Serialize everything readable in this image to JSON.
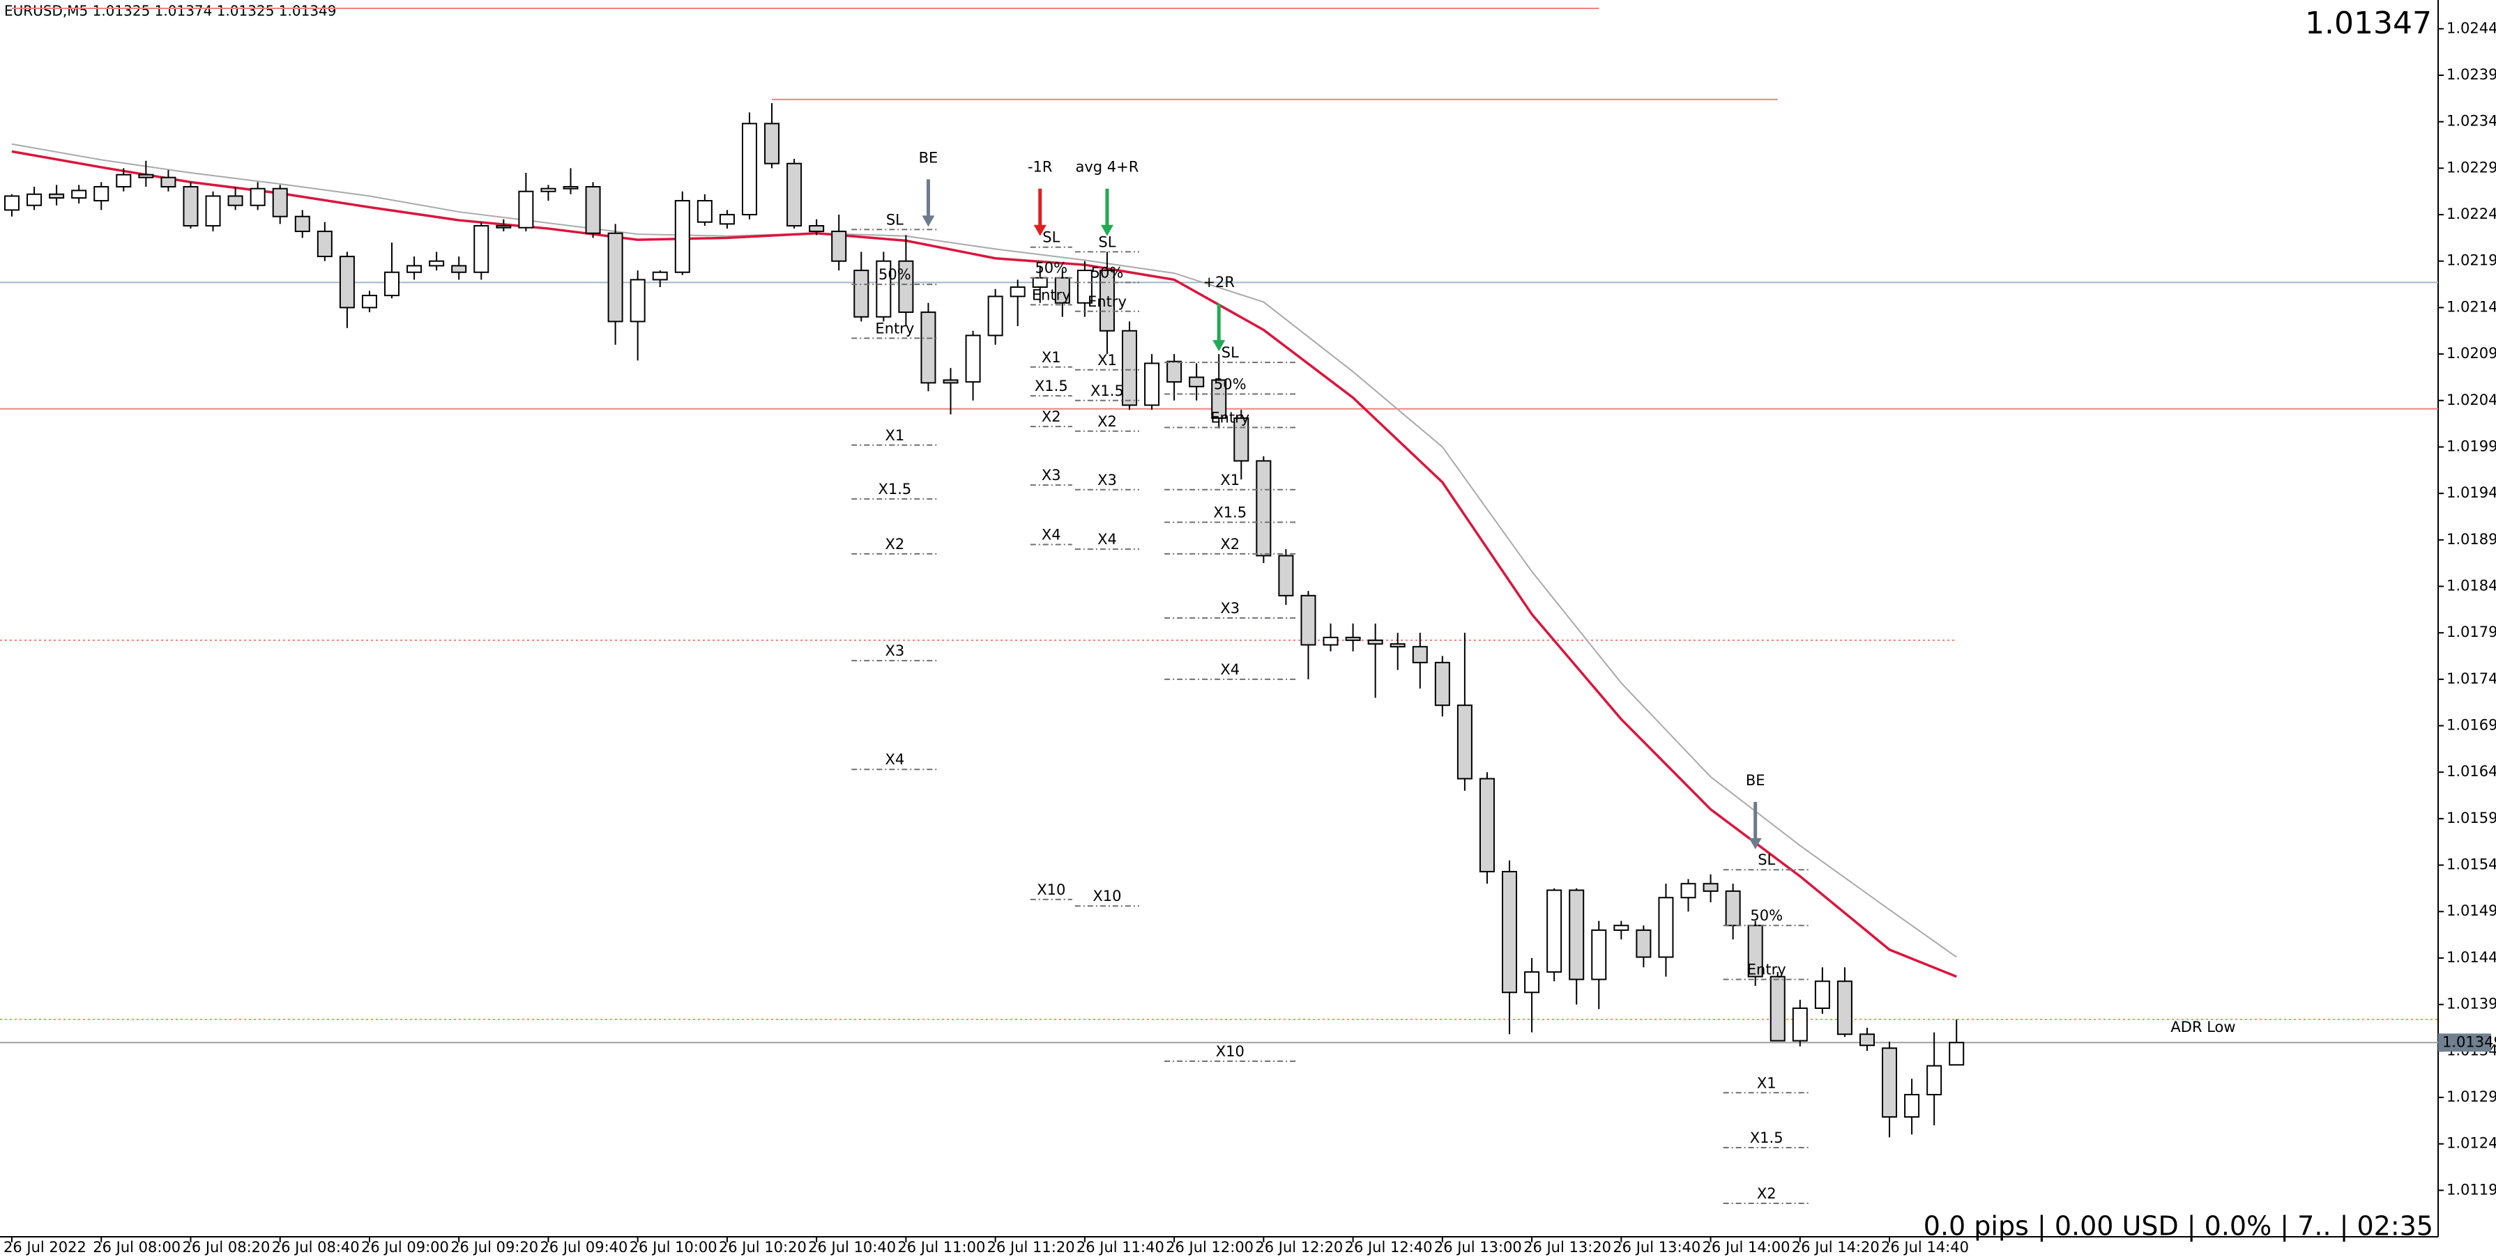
{
  "chart_data": {
    "type": "candlestick",
    "title": "EURUSD,M5  1.01325 1.01374 1.01325 1.01349",
    "last_price": 1.01347,
    "status": "0.0 pips | 0.00 USD | 0.0% | 7.. | 02:35",
    "up_color": "#ffffff",
    "down_color": "#d3d3d3",
    "categories": [
      "26 Jul 2022",
      null,
      null,
      null,
      "26 Jul 08:00",
      null,
      null,
      null,
      "26 Jul 08:20",
      null,
      null,
      null,
      "26 Jul 08:40",
      null,
      null,
      null,
      "26 Jul 09:00",
      null,
      null,
      null,
      "26 Jul 09:20",
      null,
      null,
      null,
      "26 Jul 09:40",
      null,
      null,
      null,
      "26 Jul 10:00",
      null,
      null,
      null,
      "26 Jul 10:20",
      null,
      null,
      null,
      "26 Jul 10:40",
      null,
      null,
      null,
      "26 Jul 11:00",
      null,
      null,
      null,
      "26 Jul 11:20",
      null,
      null,
      null,
      "26 Jul 11:40",
      null,
      null,
      null,
      "26 Jul 12:00",
      null,
      null,
      null,
      "26 Jul 12:20",
      null,
      null,
      null,
      "26 Jul 12:40",
      null,
      null,
      null,
      "26 Jul 13:00",
      null,
      null,
      null,
      "26 Jul 13:20",
      null,
      null,
      null,
      "26 Jul 13:40",
      null,
      null,
      null,
      "26 Jul 14:00",
      null,
      null,
      null,
      "26 Jul 14:20",
      null,
      null,
      null,
      "26 Jul 14:40",
      null,
      null,
      null
    ],
    "open": [
      1.02245,
      1.0225,
      1.02262,
      1.02258,
      1.02255,
      1.0227,
      1.02283,
      1.0228,
      1.0227,
      1.02228,
      1.0226,
      1.0225,
      1.02268,
      1.02238,
      1.02222,
      1.02195,
      1.0214,
      1.02153,
      1.02178,
      1.02185,
      1.02185,
      1.02178,
      1.02228,
      1.02226,
      1.02265,
      1.02268,
      1.0227,
      1.0222,
      1.02125,
      1.0217,
      1.02178,
      1.02232,
      1.0223,
      1.0224,
      1.02338,
      1.02295,
      1.02228,
      1.02222,
      1.0218,
      1.0213,
      1.0219,
      1.02135,
      1.02062,
      1.0206,
      1.0211,
      1.02152,
      1.02162,
      1.02172,
      1.02145,
      1.0218,
      1.02115,
      1.02035,
      1.02082,
      1.02065,
      1.02062,
      1.02021,
      1.01975,
      1.01873,
      1.0183,
      1.01777,
      1.01785,
      1.01782,
      1.01778,
      1.01775,
      1.01758,
      1.01712,
      1.01633,
      1.01533,
      1.01403,
      1.01425,
      1.01513,
      1.01417,
      1.0147,
      1.0147,
      1.01441,
      1.01505,
      1.0152,
      1.01512,
      1.01475,
      1.0142,
      1.01351,
      1.01386,
      1.01415,
      1.01358,
      1.01343,
      1.01269,
      1.01293,
      1.01325
    ],
    "high": [
      1.02262,
      1.0227,
      1.02272,
      1.02272,
      1.02275,
      1.0229,
      1.02298,
      1.02288,
      1.02275,
      1.02265,
      1.0227,
      1.02275,
      1.02272,
      1.02245,
      1.02232,
      1.022,
      1.02158,
      1.0221,
      1.02195,
      1.022,
      1.02195,
      1.02232,
      1.02235,
      1.02285,
      1.02272,
      1.0229,
      1.02275,
      1.0223,
      1.0218,
      1.0218,
      1.02265,
      1.02262,
      1.02245,
      1.0235,
      1.0236,
      1.023,
      1.02235,
      1.0224,
      1.022,
      1.022,
      1.02218,
      1.02145,
      1.02075,
      1.02115,
      1.0216,
      1.0217,
      1.02185,
      1.0218,
      1.0219,
      1.022,
      1.02125,
      1.0209,
      1.0209,
      1.0208,
      1.0209,
      1.0203,
      1.0198,
      1.0188,
      1.01835,
      1.018,
      1.018,
      1.018,
      1.0179,
      1.0179,
      1.01765,
      1.0179,
      1.0164,
      1.01545,
      1.0144,
      1.01515,
      1.01515,
      1.0148,
      1.0148,
      1.01475,
      1.0152,
      1.01525,
      1.0153,
      1.0152,
      1.0148,
      1.01425,
      1.01395,
      1.0143,
      1.0143,
      1.01365,
      1.0135,
      1.0131,
      1.0136,
      1.01374
    ],
    "low": [
      1.02238,
      1.02245,
      1.0225,
      1.02252,
      1.02245,
      1.02265,
      1.0227,
      1.02265,
      1.02225,
      1.02222,
      1.02245,
      1.02245,
      1.0223,
      1.02215,
      1.0219,
      1.02118,
      1.02135,
      1.0215,
      1.0217,
      1.0218,
      1.0217,
      1.0217,
      1.02222,
      1.02222,
      1.02255,
      1.02262,
      1.02215,
      1.021,
      1.02083,
      1.02162,
      1.02175,
      1.02228,
      1.02225,
      1.02235,
      1.0229,
      1.02225,
      1.02218,
      1.0218,
      1.02125,
      1.02125,
      1.0212,
      1.0205,
      1.02025,
      1.0204,
      1.021,
      1.0212,
      1.02145,
      1.0213,
      1.0213,
      1.0209,
      1.0203,
      1.0203,
      1.0204,
      1.0204,
      1.0201,
      1.01955,
      1.01865,
      1.0182,
      1.0174,
      1.0177,
      1.0177,
      1.0172,
      1.0175,
      1.0173,
      1.017,
      1.0162,
      1.0152,
      1.01358,
      1.0136,
      1.01415,
      1.0139,
      1.01385,
      1.0146,
      1.0143,
      1.0142,
      1.0149,
      1.015,
      1.0146,
      1.0141,
      1.01351,
      1.01345,
      1.0138,
      1.01355,
      1.0134,
      1.01247,
      1.0125,
      1.0126,
      1.01325
    ],
    "close": [
      1.0226,
      1.02262,
      1.02258,
      1.02266,
      1.0227,
      1.02283,
      1.0228,
      1.0227,
      1.02228,
      1.0226,
      1.0225,
      1.02268,
      1.02238,
      1.02222,
      1.02195,
      1.0214,
      1.02153,
      1.02178,
      1.02185,
      1.0219,
      1.02178,
      1.02228,
      1.02226,
      1.02265,
      1.02268,
      1.0227,
      1.0222,
      1.02125,
      1.0217,
      1.02178,
      1.02255,
      1.02255,
      1.0224,
      1.02338,
      1.02295,
      1.02228,
      1.02222,
      1.0219,
      1.0213,
      1.0219,
      1.02135,
      1.02059,
      1.02059,
      1.0211,
      1.02152,
      1.02162,
      1.02172,
      1.02145,
      1.0218,
      1.02115,
      1.02035,
      1.0208,
      1.0206,
      1.02055,
      1.02021,
      1.01975,
      1.01873,
      1.0183,
      1.01777,
      1.01785,
      1.01782,
      1.01778,
      1.01775,
      1.01758,
      1.01712,
      1.01633,
      1.01533,
      1.01403,
      1.01425,
      1.01513,
      1.01417,
      1.0147,
      1.01475,
      1.01441,
      1.01505,
      1.0152,
      1.01512,
      1.01475,
      1.0142,
      1.01351,
      1.01386,
      1.01415,
      1.01358,
      1.01346,
      1.01269,
      1.01293,
      1.01324,
      1.01349
    ],
    "series": [
      {
        "color": "#a9a9a9",
        "x": [
          0,
          4,
          8,
          12,
          16,
          20,
          24,
          28,
          32,
          36,
          40,
          44,
          48,
          52,
          56,
          60,
          64,
          68,
          72,
          76,
          80,
          84,
          87
        ],
        "values": [
          1.02316,
          1.02299,
          1.02285,
          1.02273,
          1.0226,
          1.02243,
          1.02231,
          1.02219,
          1.02217,
          1.0222,
          1.02217,
          1.02203,
          1.02191,
          1.02177,
          1.02146,
          1.02071,
          1.0199,
          1.01856,
          1.01736,
          1.01635,
          1.01561,
          1.01492,
          1.01441
        ]
      },
      {
        "color": "#dc143c",
        "x": [
          0,
          4,
          8,
          12,
          16,
          20,
          24,
          28,
          32,
          36,
          40,
          44,
          48,
          52,
          56,
          60,
          64,
          68,
          72,
          76,
          80,
          84,
          87
        ],
        "values": [
          1.02308,
          1.02291,
          1.02275,
          1.02263,
          1.02248,
          1.02234,
          1.02225,
          1.02213,
          1.02215,
          1.0222,
          1.02212,
          1.02193,
          1.02186,
          1.0217,
          1.02116,
          1.02043,
          1.01952,
          1.0181,
          1.01697,
          1.016,
          1.01528,
          1.01449,
          1.0142
        ]
      }
    ],
    "hlines": [
      {
        "value": 1.02462,
        "color": "#f08080",
        "style": "solid",
        "from": 0,
        "to": 71
      },
      {
        "value": 1.02364,
        "color": "#f08080",
        "style": "solid",
        "from": 34,
        "to": 79
      },
      {
        "value": 1.02167,
        "color": "#9fb6cd",
        "style": "solid"
      },
      {
        "value": 1.02031,
        "color": "#f08080",
        "style": "solid"
      },
      {
        "value": 1.01782,
        "color": "#f08080",
        "style": "dotted",
        "to": 87
      },
      {
        "value": 1.01374,
        "color": "#ffa500",
        "style": "dotted",
        "label": "ADR Low"
      }
    ],
    "bid": 1.01349,
    "trade_levels": [
      {
        "start": 38,
        "end": 41,
        "levels": [
          {
            "label": "SL",
            "value": 1.02224
          },
          {
            "label": "50%",
            "value": 1.02165
          },
          {
            "label": "Entry",
            "value": 1.02107
          },
          {
            "label": "X1",
            "value": 1.01992
          },
          {
            "label": "X1.5",
            "value": 1.01934
          },
          {
            "label": "X2",
            "value": 1.01875
          },
          {
            "label": "X3",
            "value": 1.0176
          },
          {
            "label": "X4",
            "value": 1.01643
          }
        ]
      },
      {
        "start": 46,
        "end": 47,
        "levels": [
          {
            "label": "SL",
            "value": 1.02205
          },
          {
            "label": "50%",
            "value": 1.02172
          },
          {
            "label": "Entry",
            "value": 1.02143
          },
          {
            "label": "X1",
            "value": 1.02076
          },
          {
            "label": "X1.5",
            "value": 1.02045
          },
          {
            "label": "X2",
            "value": 1.02012
          },
          {
            "label": "X3",
            "value": 1.01949
          },
          {
            "label": "X4",
            "value": 1.01885
          },
          {
            "label": "X10",
            "value": 1.01503
          }
        ]
      },
      {
        "start": 48,
        "end": 50,
        "levels": [
          {
            "label": "SL",
            "value": 1.022
          },
          {
            "label": "50%",
            "value": 1.02167
          },
          {
            "label": "Entry",
            "value": 1.02136
          },
          {
            "label": "X1",
            "value": 1.02073
          },
          {
            "label": "X1.5",
            "value": 1.0204
          },
          {
            "label": "X2",
            "value": 1.02007
          },
          {
            "label": "X3",
            "value": 1.01944
          },
          {
            "label": "X4",
            "value": 1.0188
          },
          {
            "label": "X10",
            "value": 1.01496
          }
        ]
      },
      {
        "start": 52,
        "end": 57,
        "levels": [
          {
            "label": "SL",
            "value": 1.02081
          },
          {
            "label": "50%",
            "value": 1.02047
          },
          {
            "label": "Entry",
            "value": 1.02011
          },
          {
            "label": "X1",
            "value": 1.01944
          },
          {
            "label": "X1.5",
            "value": 1.01909
          },
          {
            "label": "X2",
            "value": 1.01875
          },
          {
            "label": "X3",
            "value": 1.01806
          },
          {
            "label": "X4",
            "value": 1.0174
          },
          {
            "label": "X10",
            "value": 1.01329
          }
        ]
      },
      {
        "start": 77,
        "end": 80,
        "levels": [
          {
            "label": "SL",
            "value": 1.01535
          },
          {
            "label": "50%",
            "value": 1.01475
          },
          {
            "label": "Entry",
            "value": 1.01417
          },
          {
            "label": "X1",
            "value": 1.01295
          },
          {
            "label": "X1.5",
            "value": 1.01236
          },
          {
            "label": "X2",
            "value": 1.01176
          }
        ]
      }
    ],
    "arrows": [
      {
        "label": "BE",
        "color": "#6c7b8b",
        "index": 41,
        "value": 1.02227
      },
      {
        "label": "-1R",
        "color": "#e01e1e",
        "index": 46,
        "value": 1.02217
      },
      {
        "label": "avg 4+R",
        "color": "#22aa55",
        "index": 49,
        "value": 1.02217
      },
      {
        "label": "+2R",
        "color": "#22aa55",
        "index": 54,
        "value": 1.02093
      },
      {
        "label": "BE",
        "color": "#6c7b8b",
        "index": 78,
        "value": 1.01557
      }
    ],
    "ylim": [
      1.0114,
      1.02471
    ],
    "yticks": [
      {
        "value": 1.0244,
        "label": "1.02440"
      },
      {
        "value": 1.0239,
        "label": "1.02390"
      },
      {
        "value": 1.0234,
        "label": "1.02340"
      },
      {
        "value": 1.0229,
        "label": "1.02290"
      },
      {
        "value": 1.0224,
        "label": "1.02240"
      },
      {
        "value": 1.0219,
        "label": "1.02190"
      },
      {
        "value": 1.0214,
        "label": "1.02140"
      },
      {
        "value": 1.0209,
        "label": "1.02090"
      },
      {
        "value": 1.0204,
        "label": "1.02040"
      },
      {
        "value": 1.0199,
        "label": "1.01990"
      },
      {
        "value": 1.0194,
        "label": "1.01940"
      },
      {
        "value": 1.0189,
        "label": "1.01890"
      },
      {
        "value": 1.0184,
        "label": "1.01840"
      },
      {
        "value": 1.0179,
        "label": "1.01790"
      },
      {
        "value": 1.0174,
        "label": "1.01740"
      },
      {
        "value": 1.0169,
        "label": "1.01690"
      },
      {
        "value": 1.0164,
        "label": "1.01640"
      },
      {
        "value": 1.0159,
        "label": "1.01590"
      },
      {
        "value": 1.0154,
        "label": "1.01540"
      },
      {
        "value": 1.0149,
        "label": "1.01490"
      },
      {
        "value": 1.0144,
        "label": "1.01440"
      },
      {
        "value": 1.0139,
        "label": "1.01390"
      },
      {
        "value": 1.0134,
        "label": "1.01340"
      },
      {
        "value": 1.0129,
        "label": "1.01290"
      },
      {
        "value": 1.0124,
        "label": "1.01240"
      },
      {
        "value": 1.0119,
        "label": "1.01190"
      }
    ]
  }
}
